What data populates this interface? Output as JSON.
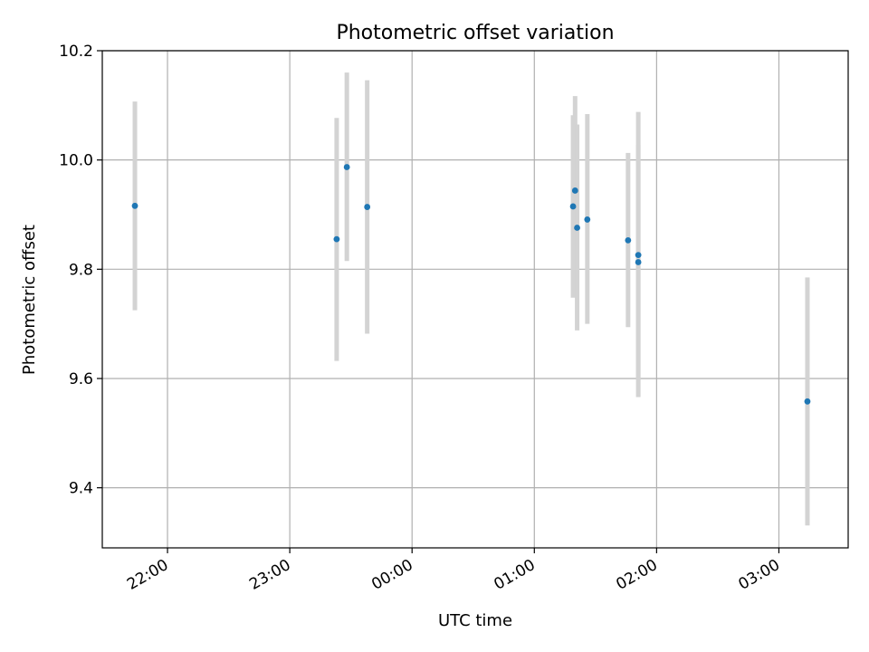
{
  "chart_data": {
    "type": "scatter",
    "title": "Photometric offset variation",
    "xlabel": "UTC time",
    "ylabel": "Photometric offset",
    "x_unit": "UTC time (hours relative to 00:00, starting 21:00 day before)",
    "xlim": [
      "21:28",
      "03:34"
    ],
    "ylim": [
      9.29,
      10.2
    ],
    "grid": true,
    "x_ticks": [
      "22:00",
      "23:00",
      "00:00",
      "01:00",
      "02:00",
      "03:00"
    ],
    "y_ticks": [
      "9.4",
      "9.6",
      "9.8",
      "10.0",
      "10.2"
    ],
    "colors": {
      "points": "#1f77b4",
      "errorbars": "#d3d3d3",
      "grid": "#b0b0b0"
    },
    "series": [
      {
        "points": [
          {
            "x": "21:44",
            "y": 9.916,
            "err_low": 9.725,
            "err_high": 10.107
          },
          {
            "x": "23:23",
            "y": 9.855,
            "err_low": 9.632,
            "err_high": 10.077
          },
          {
            "x": "23:28",
            "y": 9.987,
            "err_low": 9.815,
            "err_high": 10.16
          },
          {
            "x": "23:38",
            "y": 9.914,
            "err_low": 9.682,
            "err_high": 10.146
          },
          {
            "x": "01:19",
            "y": 9.915,
            "err_low": 9.748,
            "err_high": 10.082
          },
          {
            "x": "01:20",
            "y": 9.944,
            "err_low": 9.771,
            "err_high": 10.117
          },
          {
            "x": "01:21",
            "y": 9.876,
            "err_low": 9.688,
            "err_high": 10.065
          },
          {
            "x": "01:26",
            "y": 9.891,
            "err_low": 9.7,
            "err_high": 10.084
          },
          {
            "x": "01:46",
            "y": 9.853,
            "err_low": 9.694,
            "err_high": 10.013
          },
          {
            "x": "01:51",
            "y": 9.826,
            "err_low": 9.566,
            "err_high": 10.088
          },
          {
            "x": "01:51",
            "y": 9.813,
            "err_low": 9.597,
            "err_high": 10.028
          },
          {
            "x": "03:14",
            "y": 9.558,
            "err_low": 9.331,
            "err_high": 9.785
          }
        ]
      }
    ]
  }
}
